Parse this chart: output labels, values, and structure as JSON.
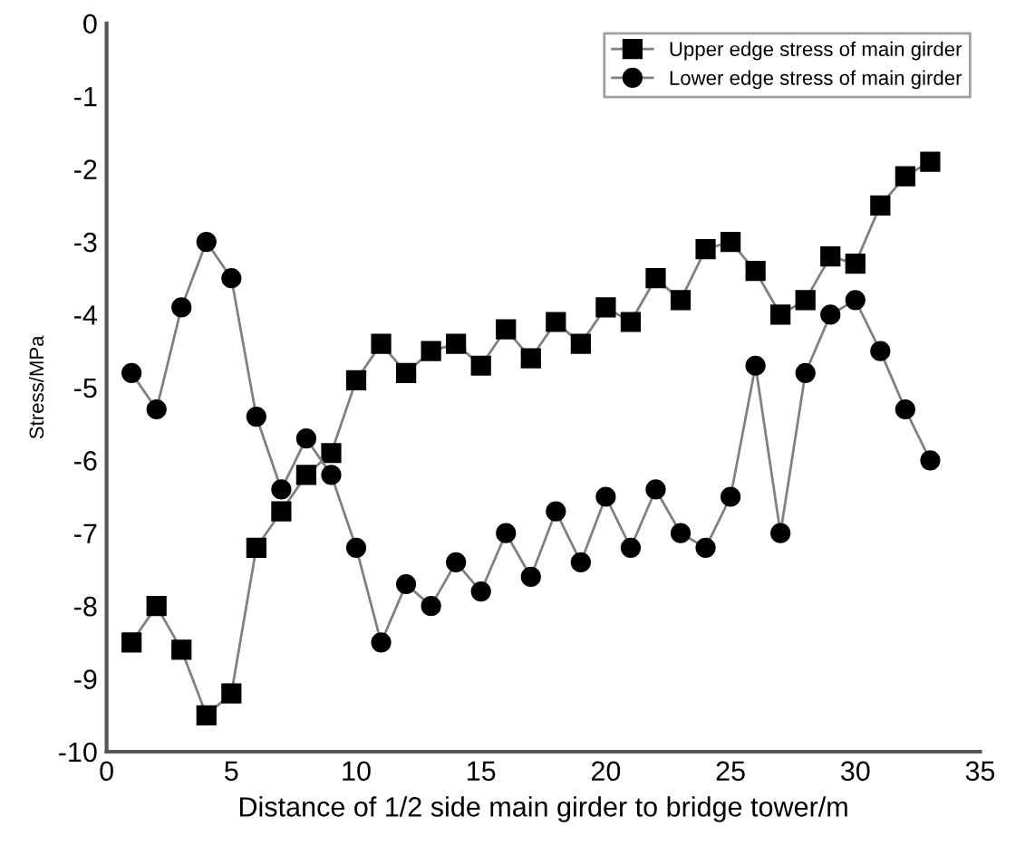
{
  "chart_data": {
    "type": "line",
    "xlabel": "Distance of 1/2 side main girder to bridge tower/m",
    "ylabel": "Stress/MPa",
    "x": [
      1,
      2,
      3,
      4,
      5,
      6,
      7,
      8,
      9,
      10,
      11,
      12,
      13,
      14,
      15,
      16,
      17,
      18,
      19,
      20,
      21,
      22,
      23,
      24,
      25,
      26,
      27,
      28,
      29,
      30,
      31,
      32,
      33
    ],
    "series": [
      {
        "name": "Upper edge stress of main girder",
        "color": "#000000",
        "marker": "square",
        "values": [
          -8.5,
          -8.0,
          -8.6,
          -9.5,
          -9.2,
          -7.2,
          -6.7,
          -6.2,
          -5.9,
          -4.9,
          -4.4,
          -4.8,
          -4.5,
          -4.4,
          -4.7,
          -4.2,
          -4.6,
          -4.1,
          -4.4,
          -3.9,
          -4.1,
          -3.5,
          -3.8,
          -3.1,
          -3.0,
          -3.4,
          -4.0,
          -3.8,
          -3.2,
          -3.3,
          -2.5,
          -2.1,
          -1.9
        ]
      },
      {
        "name": "Lower edge stress of main girder",
        "color": "#000000",
        "marker": "circle",
        "values": [
          -4.8,
          -5.3,
          -3.9,
          -3.0,
          -3.5,
          -5.4,
          -6.4,
          -5.7,
          -6.2,
          -7.2,
          -8.5,
          -7.7,
          -8.0,
          -7.4,
          -7.8,
          -7.0,
          -7.6,
          -6.7,
          -7.4,
          -6.5,
          -7.2,
          -6.4,
          -7.0,
          -7.2,
          -6.5,
          -4.7,
          -7.0,
          -4.8,
          -4.0,
          -3.8,
          -4.5,
          -5.3,
          -6.0
        ]
      }
    ],
    "xlim": [
      0,
      35
    ],
    "xticks": [
      0,
      5,
      10,
      15,
      20,
      25,
      30,
      35
    ],
    "ylim": [
      -10,
      0
    ],
    "yticks": [
      -10,
      -9,
      -8,
      -7,
      -6,
      -5,
      -4,
      -3,
      -2,
      -1,
      0
    ],
    "grid": false,
    "legend": "top right",
    "line_style": "solid"
  }
}
